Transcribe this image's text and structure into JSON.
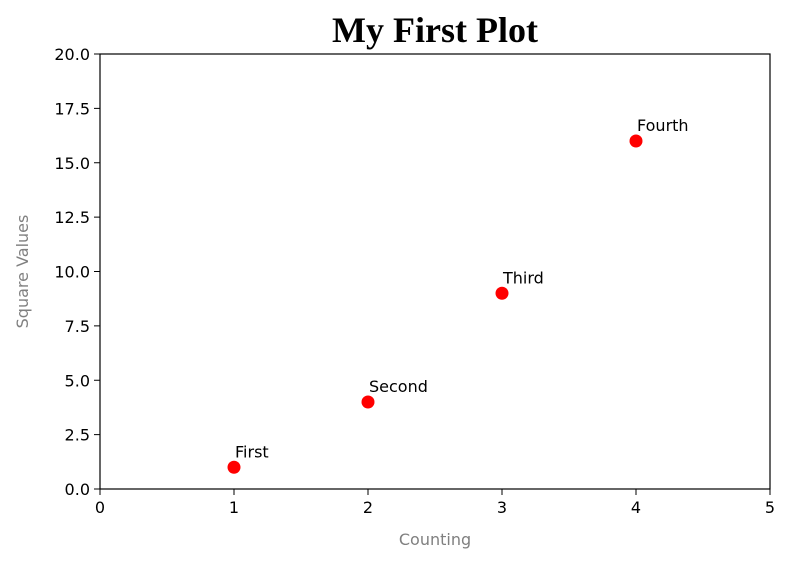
{
  "chart_data": {
    "type": "scatter",
    "title": "My First Plot",
    "xlabel": "Counting",
    "ylabel": "Square Values",
    "xlim": [
      0,
      5
    ],
    "ylim": [
      0,
      20
    ],
    "x_ticks": [
      "0",
      "1",
      "2",
      "3",
      "4",
      "5"
    ],
    "y_ticks": [
      "0.0",
      "2.5",
      "5.0",
      "7.5",
      "10.0",
      "12.5",
      "15.0",
      "17.5",
      "20.0"
    ],
    "grid": false,
    "marker_color": "#ff0000",
    "points": [
      {
        "x": 1,
        "y": 1,
        "label": "First"
      },
      {
        "x": 2,
        "y": 4,
        "label": "Second"
      },
      {
        "x": 3,
        "y": 9,
        "label": "Third"
      },
      {
        "x": 4,
        "y": 16,
        "label": "Fourth"
      }
    ]
  }
}
